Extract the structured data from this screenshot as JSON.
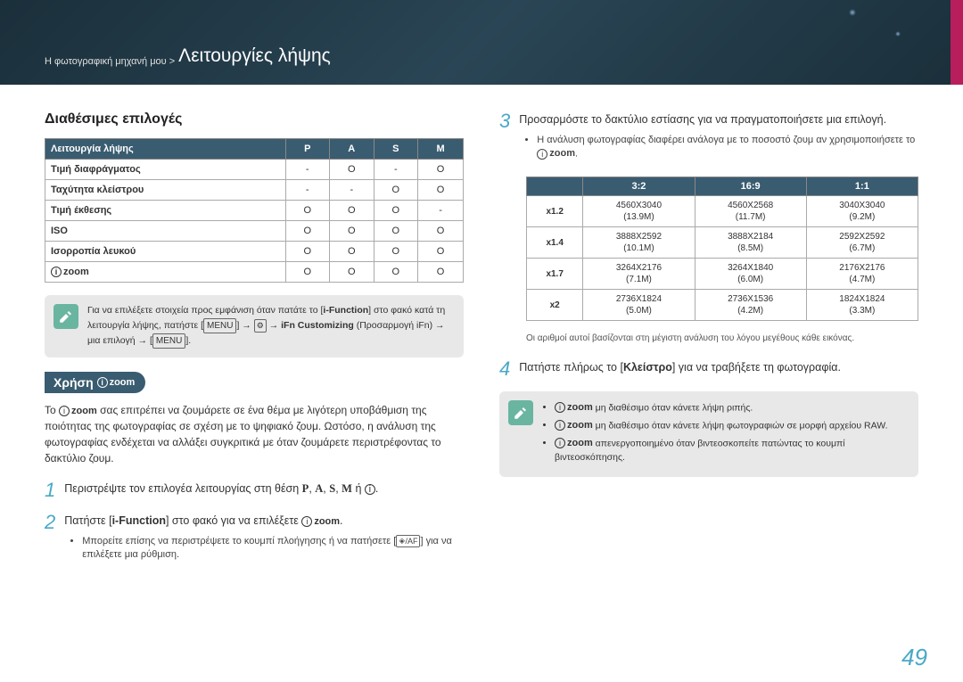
{
  "header": {
    "breadcrumb": "Η φωτογραφική μηχανή μου >",
    "title": "Λειτουργίες λήψης"
  },
  "left": {
    "options_title": "Διαθέσιμες επιλογές",
    "table1": {
      "headers": [
        "Λειτουργία λήψης",
        "P",
        "A",
        "S",
        "M"
      ],
      "rows": [
        {
          "label": "Τιμή διαφράγματος",
          "cells": [
            "-",
            "O",
            "-",
            "O"
          ]
        },
        {
          "label": "Ταχύτητα κλείστρου",
          "cells": [
            "-",
            "-",
            "O",
            "O"
          ]
        },
        {
          "label": "Τιμή έκθεσης",
          "cells": [
            "O",
            "O",
            "O",
            "-"
          ]
        },
        {
          "label": "ISO",
          "cells": [
            "O",
            "O",
            "O",
            "O"
          ]
        },
        {
          "label": "Ισορροπία λευκού",
          "cells": [
            "O",
            "O",
            "O",
            "O"
          ]
        },
        {
          "label": "__izoom__",
          "cells": [
            "O",
            "O",
            "O",
            "O"
          ]
        }
      ]
    },
    "note1_a": "Για να επιλέξετε στοιχεία προς εμφάνιση όταν πατάτε το [",
    "note1_b": "i-Function",
    "note1_c": "] στο φακό κατά τη λειτουργία λήψης, πατήστε [",
    "note1_menu": "MENU",
    "note1_d": "] → ",
    "note1_e": " → ",
    "note1_ifn": "iFn Customizing",
    "note1_f": " (Προσαρμογή iFn) → μια επιλογή → [",
    "note1_g": "].",
    "usage_label": "Χρήση",
    "usage_text_a": "Το ",
    "usage_text_b": " σας επιτρέπει να ζουμάρετε σε ένα θέμα με λιγότερη υποβάθμιση της ποιότητας της φωτογραφίας σε σχέση με το ψηφιακό ζουμ. Ωστόσο, η ανάλυση της φωτογραφίας ενδέχεται να αλλάξει συγκριτικά με όταν ζουμάρετε περιστρέφοντας το δακτύλιο ζουμ.",
    "step1": "Περιστρέψτε τον επιλογέα λειτουργίας στη θέση ",
    "step1_modes": [
      "P",
      "A",
      "S",
      "M"
    ],
    "step1_or": " ή ",
    "step2_a": "Πατήστε [",
    "step2_b": "i-Function",
    "step2_c": "] στο φακό για να επιλέξετε ",
    "step2_sub_a": "Μπορείτε επίσης να περιστρέψετε το κουμπί πλοήγησης ή να πατήσετε [",
    "step2_sub_b": "] για να επιλέξετε μια ρύθμιση."
  },
  "right": {
    "step3": "Προσαρμόστε το δακτύλιο εστίασης για να πραγματοποιήσετε μια επιλογή.",
    "step3_sub_a": "Η ανάλυση φωτογραφίας διαφέρει ανάλογα με το ποσοστό ζουμ αν χρησιμοποιήσετε το ",
    "table2": {
      "headers": [
        "",
        "3:2",
        "16:9",
        "1:1"
      ],
      "rows": [
        {
          "label": "x1.2",
          "cells": [
            "4560X3040\n(13.9M)",
            "4560X2568\n(11.7M)",
            "3040X3040\n(9.2M)"
          ]
        },
        {
          "label": "x1.4",
          "cells": [
            "3888X2592\n(10.1M)",
            "3888X2184\n(8.5M)",
            "2592X2592\n(6.7M)"
          ]
        },
        {
          "label": "x1.7",
          "cells": [
            "3264X2176\n(7.1M)",
            "3264X1840\n(6.0M)",
            "2176X2176\n(4.7M)"
          ]
        },
        {
          "label": "x2",
          "cells": [
            "2736X1824\n(5.0M)",
            "2736X1536\n(4.2M)",
            "1824X1824\n(3.3M)"
          ]
        }
      ]
    },
    "footnote": "Οι αριθμοί αυτοί βασίζονται στη μέγιστη ανάλυση του λόγου μεγέθους κάθε εικόνας.",
    "step4_a": "Πατήστε πλήρως το [",
    "step4_shutter": "Κλείστρο",
    "step4_b": "] για να τραβήξετε τη φωτογραφία.",
    "note2": [
      "__izoom__ μη διαθέσιμο όταν κάνετε λήψη ριπής.",
      "__izoom__ μη διαθέσιμο όταν κάνετε λήψη φωτογραφιών σε μορφή αρχείου RAW.",
      "__izoom__ απενεργοποιημένο όταν βιντεοσκοπείτε πατώντας το κουμπί βιντεοσκόπησης."
    ]
  },
  "page_number": "49"
}
